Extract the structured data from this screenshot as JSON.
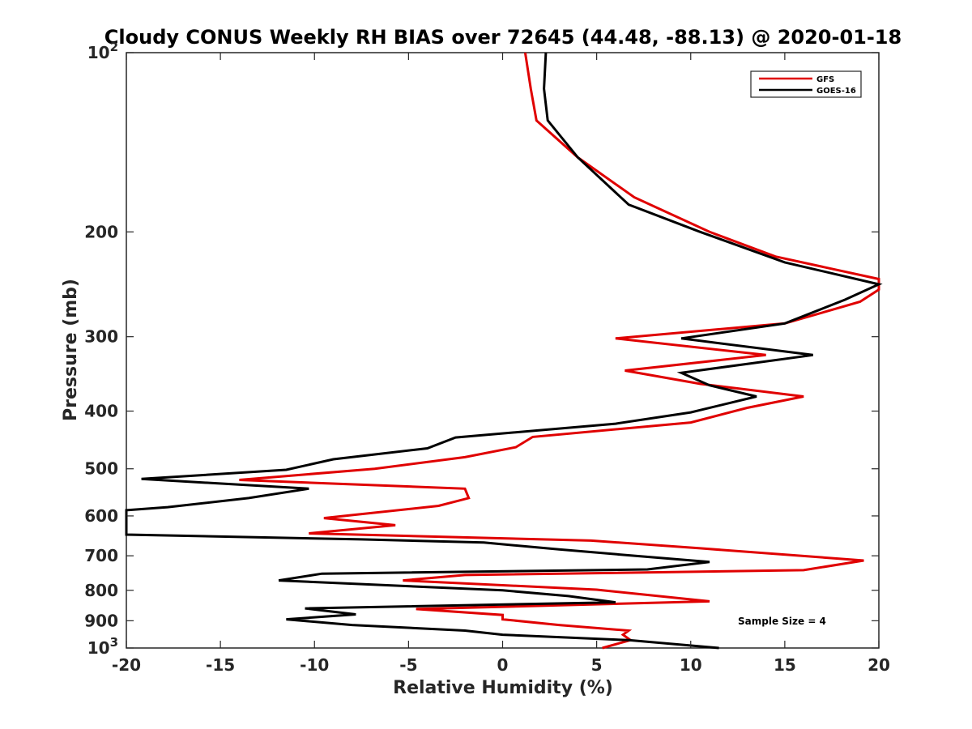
{
  "chart_data": {
    "type": "line",
    "title": "Cloudy CONUS Weekly RH BIAS over 72645 (44.48, -88.13) @ 2020-01-18",
    "xlabel": "Relative Humidity (%)",
    "ylabel": "Pressure (mb)",
    "xlim": [
      -20,
      20
    ],
    "ylim": [
      100,
      1000
    ],
    "y_scale": "log",
    "y_reversed": true,
    "grid": false,
    "legend_position": "top-right",
    "annotation": "Sample Size = 4",
    "x_ticks": [
      -20,
      -15,
      -10,
      -5,
      0,
      5,
      10,
      15,
      20
    ],
    "x_tick_labels": [
      "-20",
      "-15",
      "-10",
      "-5",
      "0",
      "5",
      "10",
      "15",
      "20"
    ],
    "y_ticks": [
      {
        "value": 100,
        "base": "10",
        "exp": "2"
      },
      {
        "value": 200,
        "base": "200",
        "exp": ""
      },
      {
        "value": 300,
        "base": "300",
        "exp": ""
      },
      {
        "value": 400,
        "base": "400",
        "exp": ""
      },
      {
        "value": 500,
        "base": "500",
        "exp": ""
      },
      {
        "value": 600,
        "base": "600",
        "exp": ""
      },
      {
        "value": 700,
        "base": "700",
        "exp": ""
      },
      {
        "value": 800,
        "base": "800",
        "exp": ""
      },
      {
        "value": 900,
        "base": "900",
        "exp": ""
      },
      {
        "value": 1000,
        "base": "10",
        "exp": "3"
      }
    ],
    "series": [
      {
        "name": "GFS",
        "color": "#e00000",
        "points": [
          [
            1.2,
            100
          ],
          [
            1.5,
            115
          ],
          [
            1.8,
            130
          ],
          [
            4,
            150
          ],
          [
            7,
            175
          ],
          [
            11,
            200
          ],
          [
            14.5,
            220
          ],
          [
            20,
            240
          ],
          [
            20,
            250
          ],
          [
            19,
            262
          ],
          [
            15,
            285
          ],
          [
            6,
            302
          ],
          [
            14,
            322
          ],
          [
            6.5,
            342
          ],
          [
            10.5,
            360
          ],
          [
            16,
            378
          ],
          [
            13,
            395
          ],
          [
            10,
            418
          ],
          [
            1.6,
            442
          ],
          [
            0.7,
            460
          ],
          [
            -2,
            478
          ],
          [
            -6.8,
            500
          ],
          [
            -14,
            522
          ],
          [
            -2,
            540
          ],
          [
            -1.8,
            560
          ],
          [
            -3.4,
            577
          ],
          [
            -9.5,
            605
          ],
          [
            -5.7,
            622
          ],
          [
            -10.3,
            642
          ],
          [
            4.7,
            660
          ],
          [
            10.5,
            680
          ],
          [
            19.2,
            713
          ],
          [
            16,
            740
          ],
          [
            -2,
            754
          ],
          [
            -5.3,
            770
          ],
          [
            5,
            798
          ],
          [
            11,
            835
          ],
          [
            -4.6,
            860
          ],
          [
            0,
            880
          ],
          [
            0,
            895
          ],
          [
            3,
            915
          ],
          [
            6.7,
            935
          ],
          [
            6.4,
            950
          ],
          [
            6.8,
            970
          ],
          [
            5.3,
            1000
          ]
        ]
      },
      {
        "name": "GOES-16",
        "color": "#000000",
        "points": [
          [
            2.3,
            100
          ],
          [
            2.2,
            115
          ],
          [
            2.4,
            130
          ],
          [
            4,
            150
          ],
          [
            6.7,
            180
          ],
          [
            10.5,
            200
          ],
          [
            15,
            225
          ],
          [
            20,
            245
          ],
          [
            18.2,
            260
          ],
          [
            15,
            285
          ],
          [
            9.5,
            302
          ],
          [
            16.5,
            322
          ],
          [
            9.5,
            345
          ],
          [
            11,
            362
          ],
          [
            13.5,
            378
          ],
          [
            10,
            402
          ],
          [
            6,
            420
          ],
          [
            -2.5,
            443
          ],
          [
            -4,
            462
          ],
          [
            -9,
            482
          ],
          [
            -11.5,
            502
          ],
          [
            -19.2,
            520
          ],
          [
            -10.3,
            540
          ],
          [
            -13.5,
            560
          ],
          [
            -17.8,
            580
          ],
          [
            -20,
            587
          ],
          [
            -20,
            645
          ],
          [
            -7.5,
            657
          ],
          [
            -1,
            665
          ],
          [
            3,
            683
          ],
          [
            7,
            700
          ],
          [
            11,
            717
          ],
          [
            7.7,
            738
          ],
          [
            -9.6,
            750
          ],
          [
            -11.9,
            770
          ],
          [
            0,
            800
          ],
          [
            3.5,
            818
          ],
          [
            6,
            838
          ],
          [
            -10.5,
            858
          ],
          [
            -7.8,
            878
          ],
          [
            -11.5,
            895
          ],
          [
            -8,
            915
          ],
          [
            -2,
            935
          ],
          [
            0,
            950
          ],
          [
            6.7,
            970
          ],
          [
            11.5,
            1000
          ]
        ]
      }
    ]
  }
}
